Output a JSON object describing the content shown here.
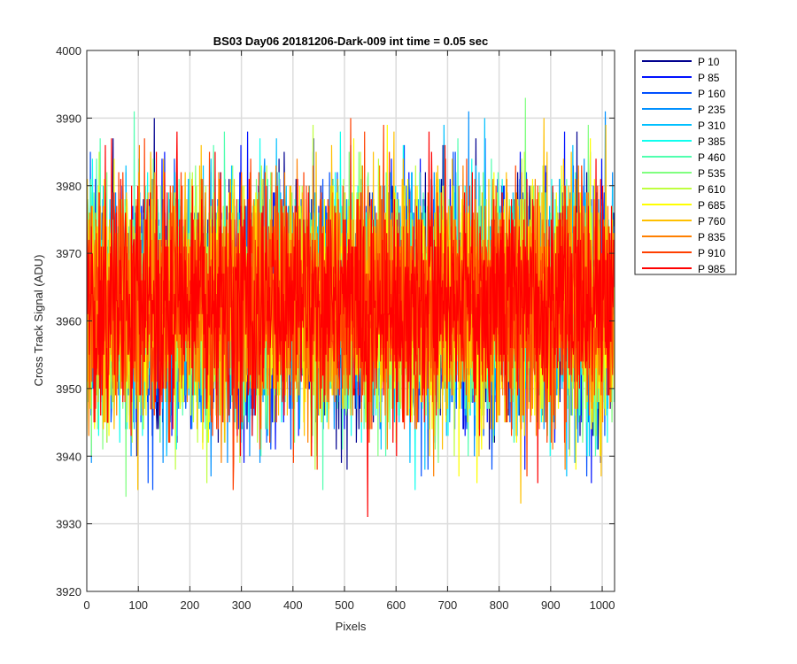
{
  "chart_data": {
    "type": "line",
    "title": "BS03 Day06 20181206-Dark-009 int time = 0.05 sec",
    "xlabel": "Pixels",
    "ylabel": "Cross Track Signal (ADU)",
    "xlim": [
      0,
      1024
    ],
    "ylim": [
      3920,
      4000
    ],
    "xticks": [
      0,
      100,
      200,
      300,
      400,
      500,
      600,
      700,
      800,
      900,
      1000
    ],
    "yticks": [
      3920,
      3930,
      3940,
      3950,
      3960,
      3970,
      3980,
      3990,
      4000
    ],
    "grid": true,
    "legend_position": "outside-top-right",
    "noise_model": {
      "mean": 3963,
      "std": 8.5,
      "min": 3929,
      "max": 3995,
      "samples_per_series": 1024
    },
    "series": [
      {
        "name": "P 10",
        "color": "#00008f",
        "x_start": 0,
        "x_end": 1023
      },
      {
        "name": "P 85",
        "color": "#0010ff",
        "x_start": 0,
        "x_end": 1023
      },
      {
        "name": "P 160",
        "color": "#0050ff",
        "x_start": 0,
        "x_end": 1023
      },
      {
        "name": "P 235",
        "color": "#0090ff",
        "x_start": 0,
        "x_end": 1023
      },
      {
        "name": "P 310",
        "color": "#00c0ff",
        "x_start": 0,
        "x_end": 1023
      },
      {
        "name": "P 385",
        "color": "#10ffef",
        "x_start": 0,
        "x_end": 1023
      },
      {
        "name": "P 460",
        "color": "#50ffaf",
        "x_start": 0,
        "x_end": 1023
      },
      {
        "name": "P 535",
        "color": "#80ff80",
        "x_start": 0,
        "x_end": 1023
      },
      {
        "name": "P 610",
        "color": "#bfff40",
        "x_start": 0,
        "x_end": 1023
      },
      {
        "name": "P 685",
        "color": "#ffff00",
        "x_start": 0,
        "x_end": 1023
      },
      {
        "name": "P 760",
        "color": "#ffc000",
        "x_start": 0,
        "x_end": 1023
      },
      {
        "name": "P 835",
        "color": "#ff8000",
        "x_start": 0,
        "x_end": 1023
      },
      {
        "name": "P 910",
        "color": "#ff4000",
        "x_start": 0,
        "x_end": 1023
      },
      {
        "name": "P 985",
        "color": "#ff0000",
        "x_start": 0,
        "x_end": 1023
      }
    ]
  }
}
